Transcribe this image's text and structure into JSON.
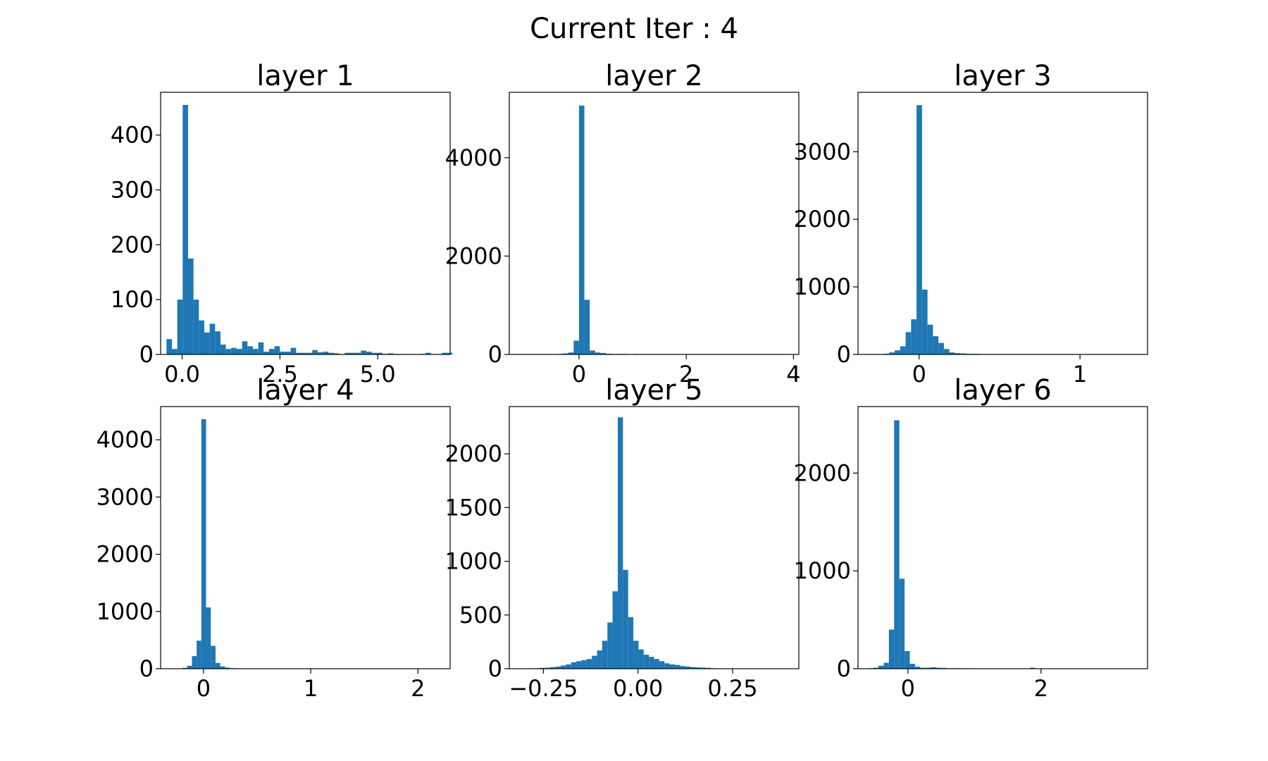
{
  "figure": {
    "title": "Current Iter : 4"
  },
  "colors": {
    "bar": "#1f77b4",
    "axes": "#000000",
    "background": "#ffffff"
  },
  "chart_data": [
    {
      "type": "bar",
      "title": "layer 1",
      "xlim": [
        -0.55,
        6.85
      ],
      "ylim": [
        0,
        478
      ],
      "xticks": [
        {
          "value": 0,
          "label": "0.0"
        },
        {
          "value": 2.5,
          "label": "2.5"
        },
        {
          "value": 5,
          "label": "5.0"
        }
      ],
      "yticks": [
        {
          "value": 0,
          "label": "0"
        },
        {
          "value": 100,
          "label": "100"
        },
        {
          "value": 200,
          "label": "200"
        },
        {
          "value": 300,
          "label": "300"
        },
        {
          "value": 400,
          "label": "400"
        }
      ],
      "bin_start": -0.4,
      "bin_width": 0.138,
      "values": [
        28,
        10,
        100,
        455,
        175,
        100,
        62,
        40,
        56,
        42,
        18,
        10,
        12,
        10,
        24,
        15,
        10,
        22,
        5,
        10,
        15,
        5,
        5,
        12,
        3,
        3,
        3,
        8,
        4,
        5,
        3,
        2,
        0,
        3,
        3,
        3,
        7,
        5,
        3,
        3,
        1,
        2,
        1,
        0,
        0,
        0,
        0,
        1,
        3,
        0,
        0,
        3,
        3
      ]
    },
    {
      "type": "bar",
      "title": "layer 2",
      "xlim": [
        -1.3,
        4.1
      ],
      "ylim": [
        0,
        5330
      ],
      "xticks": [
        {
          "value": 0,
          "label": "0"
        },
        {
          "value": 2,
          "label": "2"
        },
        {
          "value": 4,
          "label": "4"
        }
      ],
      "yticks": [
        {
          "value": 0,
          "label": "0"
        },
        {
          "value": 2000,
          "label": "2000"
        },
        {
          "value": 4000,
          "label": "4000"
        }
      ],
      "bin_start": -0.6,
      "bin_width": 0.1,
      "values": [
        0,
        0,
        10,
        20,
        40,
        280,
        5060,
        1110,
        80,
        40,
        30,
        15,
        10,
        10,
        10,
        5,
        10,
        5
      ]
    },
    {
      "type": "bar",
      "title": "layer 3",
      "xlim": [
        -0.38,
        1.42
      ],
      "ylim": [
        0,
        3880
      ],
      "xticks": [
        {
          "value": 0,
          "label": "0"
        },
        {
          "value": 1,
          "label": "1"
        }
      ],
      "yticks": [
        {
          "value": 0,
          "label": "0"
        },
        {
          "value": 1000,
          "label": "1000"
        },
        {
          "value": 2000,
          "label": "2000"
        },
        {
          "value": 3000,
          "label": "3000"
        }
      ],
      "bin_start": -0.22,
      "bin_width": 0.034,
      "values": [
        10,
        30,
        60,
        120,
        330,
        520,
        3690,
        960,
        440,
        270,
        170,
        80,
        30,
        20,
        15,
        10,
        10,
        8,
        5,
        5,
        4,
        3,
        3
      ]
    },
    {
      "type": "bar",
      "title": "layer 4",
      "xlim": [
        -0.4,
        2.3
      ],
      "ylim": [
        0,
        4580
      ],
      "xticks": [
        {
          "value": 0,
          "label": "0"
        },
        {
          "value": 1,
          "label": "1"
        },
        {
          "value": 2,
          "label": "2"
        }
      ],
      "yticks": [
        {
          "value": 0,
          "label": "0"
        },
        {
          "value": 1000,
          "label": "1000"
        },
        {
          "value": 2000,
          "label": "2000"
        },
        {
          "value": 3000,
          "label": "3000"
        },
        {
          "value": 4000,
          "label": "4000"
        }
      ],
      "bin_start": -0.24,
      "bin_width": 0.044,
      "values": [
        5,
        15,
        50,
        220,
        490,
        4360,
        1070,
        400,
        100,
        40,
        20,
        10,
        8,
        5
      ]
    },
    {
      "type": "bar",
      "title": "layer 5",
      "xlim": [
        -0.34,
        0.425
      ],
      "ylim": [
        0,
        2440
      ],
      "xticks": [
        {
          "value": -0.25,
          "label": "−0.25"
        },
        {
          "value": 0,
          "label": "0.00"
        },
        {
          "value": 0.25,
          "label": "0.25"
        }
      ],
      "yticks": [
        {
          "value": 0,
          "label": "0"
        },
        {
          "value": 500,
          "label": "500"
        },
        {
          "value": 1000,
          "label": "1000"
        },
        {
          "value": 1500,
          "label": "1500"
        },
        {
          "value": 2000,
          "label": "2000"
        }
      ],
      "bin_start": -0.3,
      "bin_width": 0.0137,
      "values": [
        2,
        3,
        5,
        8,
        10,
        15,
        20,
        30,
        40,
        60,
        70,
        80,
        90,
        120,
        170,
        260,
        430,
        720,
        2340,
        920,
        480,
        260,
        180,
        130,
        110,
        90,
        70,
        50,
        40,
        35,
        25,
        20,
        15,
        12,
        10,
        8,
        5,
        3,
        2,
        1
      ]
    },
    {
      "type": "bar",
      "title": "layer 6",
      "xlim": [
        -0.75,
        3.6
      ],
      "ylim": [
        0,
        2680
      ],
      "xticks": [
        {
          "value": 0,
          "label": "0"
        },
        {
          "value": 2,
          "label": "2"
        }
      ],
      "yticks": [
        {
          "value": 0,
          "label": "0"
        },
        {
          "value": 1000,
          "label": "1000"
        },
        {
          "value": 2000,
          "label": "2000"
        }
      ],
      "bin_start": -0.6,
      "bin_width": 0.0785,
      "values": [
        5,
        10,
        30,
        60,
        400,
        2540,
        920,
        180,
        50,
        20,
        10,
        10,
        15,
        10,
        8,
        5,
        5,
        5,
        5,
        4,
        3,
        2,
        1,
        1,
        0,
        0,
        0,
        0,
        0,
        0,
        0,
        10
      ]
    }
  ]
}
